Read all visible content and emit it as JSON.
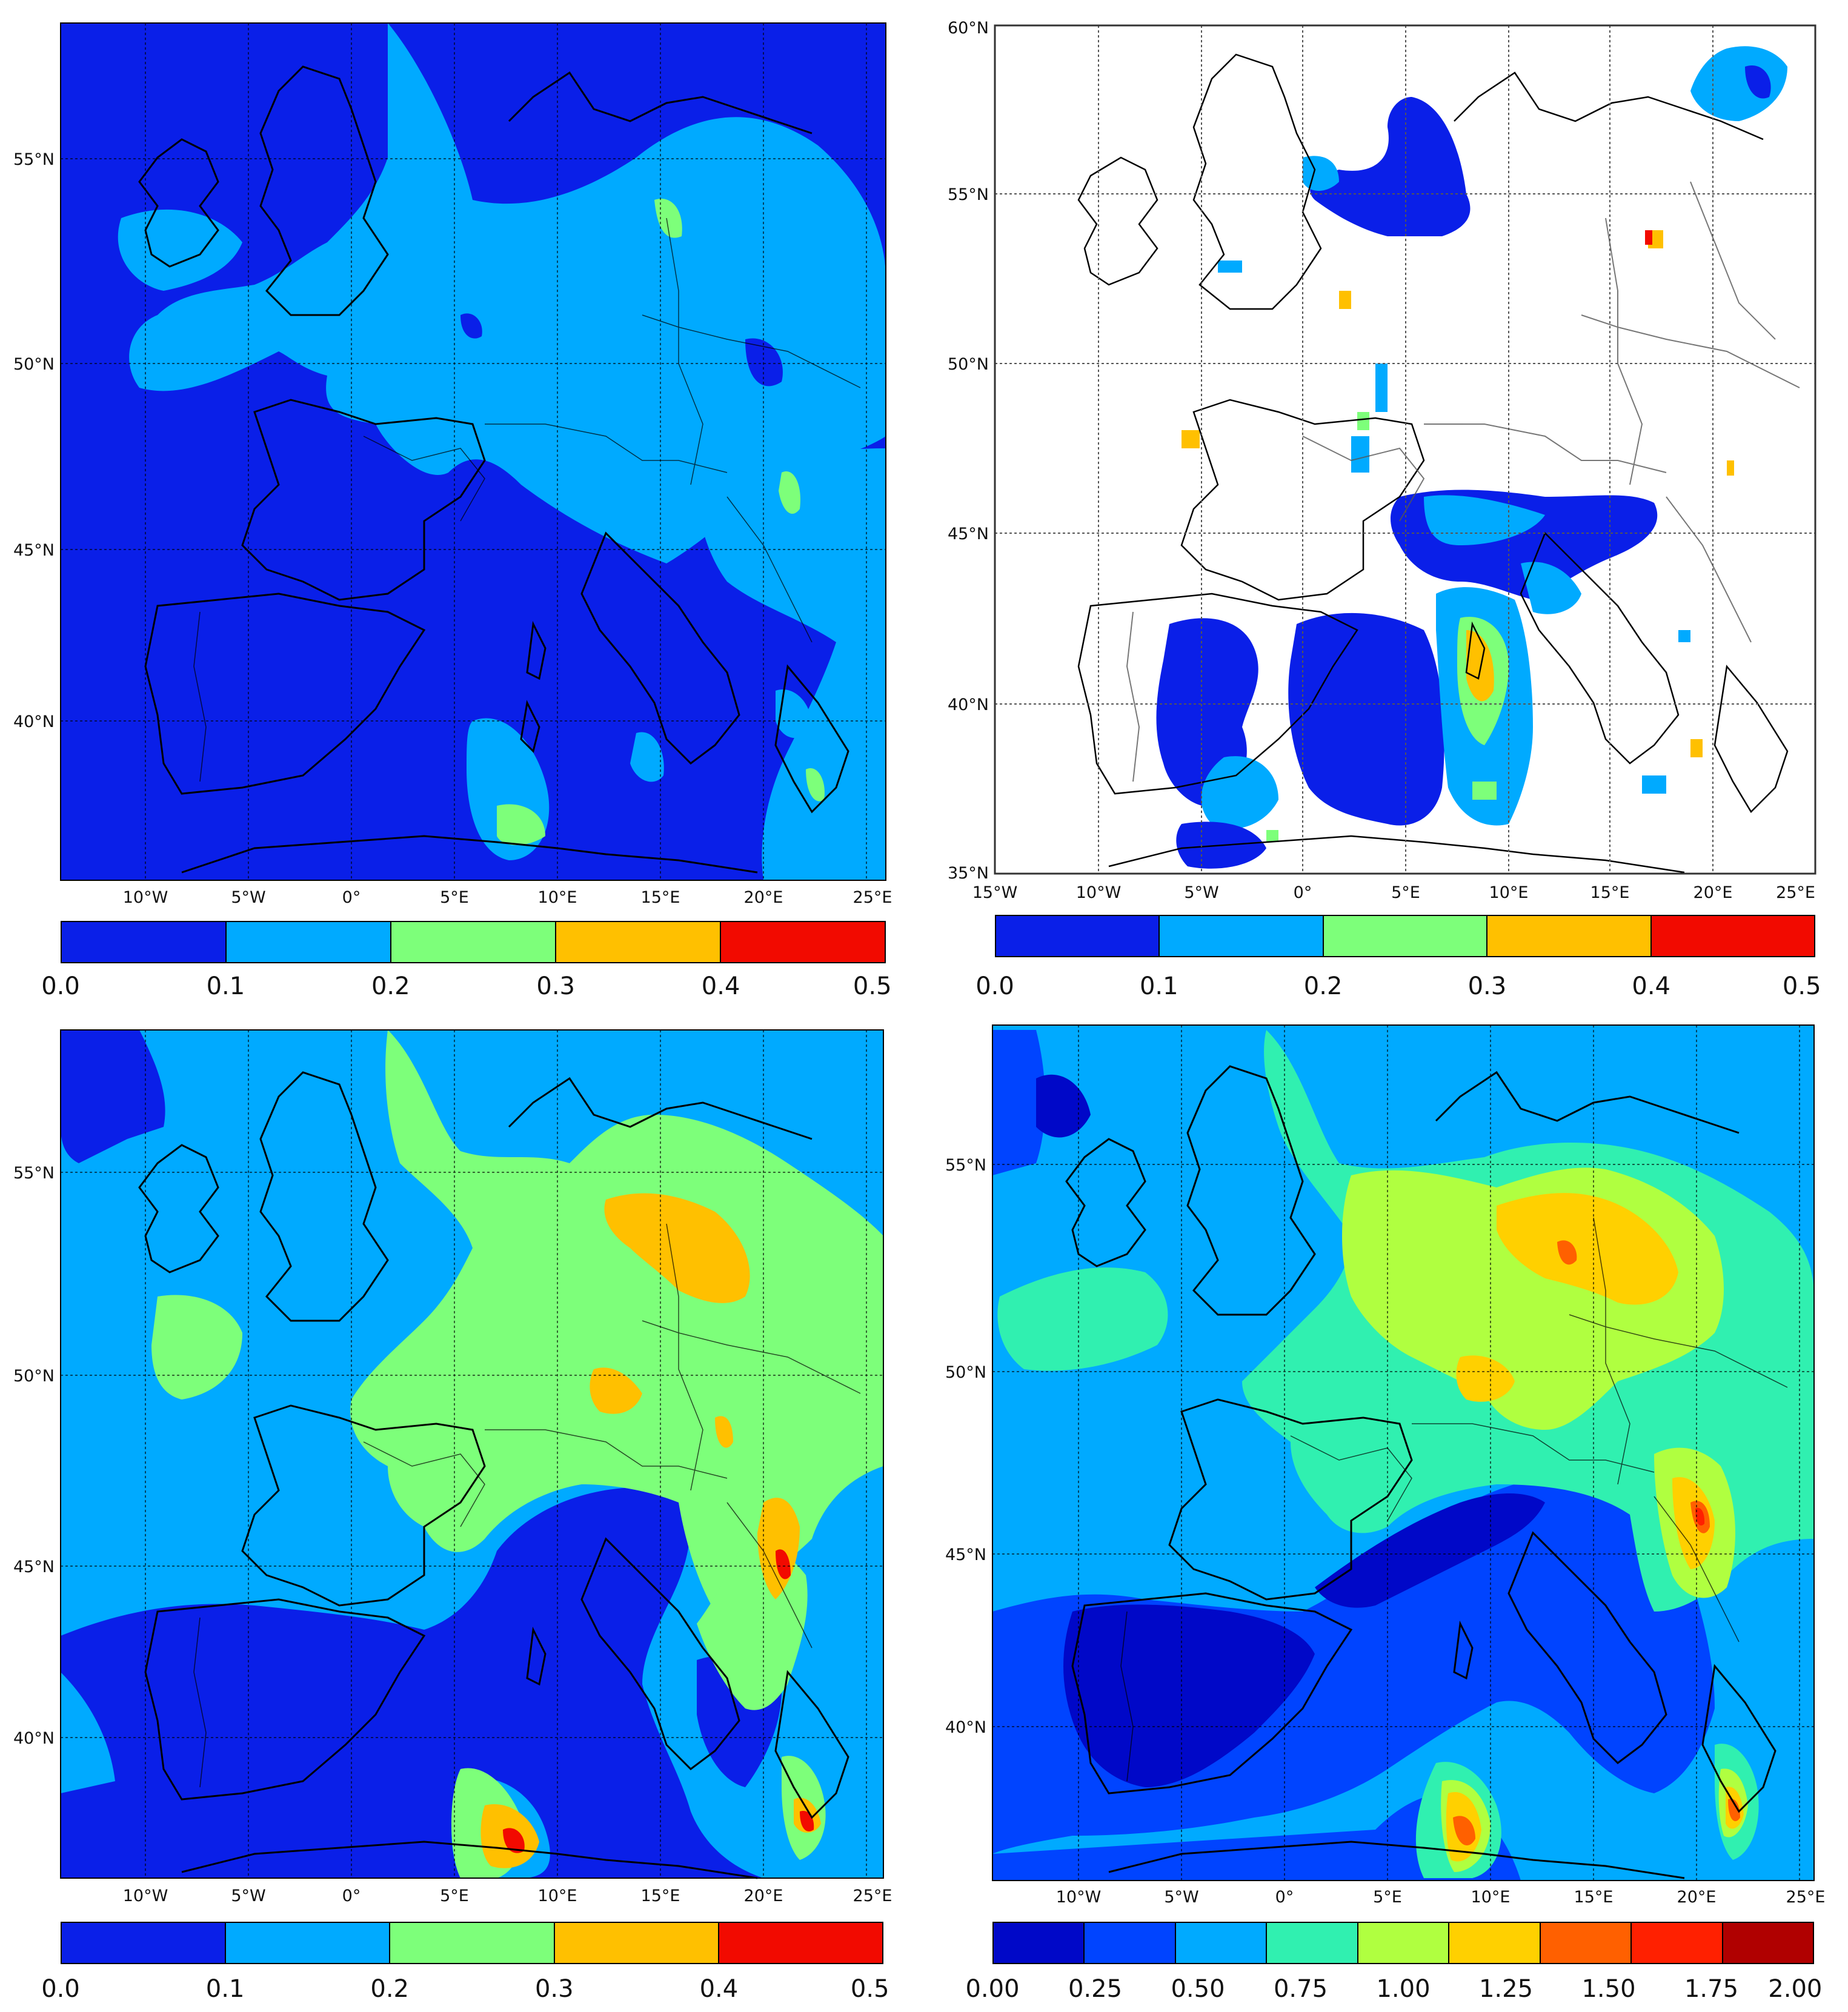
{
  "panels": [
    {
      "id": "top-left",
      "lat_labels": [
        "55°N",
        "50°N",
        "45°N",
        "40°N"
      ],
      "lon_labels": [
        "10°W",
        "5°W",
        "0°",
        "5°E",
        "10°E",
        "15°E",
        "20°E",
        "25°E"
      ],
      "colorbar": {
        "colors": [
          "#0a1fe8",
          "#00aaff",
          "#7dff7a",
          "#ffc000",
          "#f20a00"
        ],
        "labels": [
          "0.0",
          "0.1",
          "0.2",
          "0.3",
          "0.4",
          "0.5"
        ]
      }
    },
    {
      "id": "top-right",
      "lat_labels": [
        "60°N",
        "55°N",
        "50°N",
        "45°N",
        "40°N",
        "35°N"
      ],
      "lon_labels": [
        "15°W",
        "10°W",
        "5°W",
        "0°",
        "5°E",
        "10°E",
        "15°E",
        "20°E",
        "25°E"
      ],
      "colorbar": {
        "colors": [
          "#0a1fe8",
          "#00aaff",
          "#7dff7a",
          "#ffc000",
          "#f20a00"
        ],
        "labels": [
          "0.0",
          "0.1",
          "0.2",
          "0.3",
          "0.4",
          "0.5"
        ]
      }
    },
    {
      "id": "bottom-left",
      "lat_labels": [
        "55°N",
        "50°N",
        "45°N",
        "40°N"
      ],
      "lon_labels": [
        "10°W",
        "5°W",
        "0°",
        "5°E",
        "10°E",
        "15°E",
        "20°E",
        "25°E"
      ],
      "colorbar": {
        "colors": [
          "#0a1fe8",
          "#00aaff",
          "#7dff7a",
          "#ffc000",
          "#f20a00"
        ],
        "labels": [
          "0.0",
          "0.1",
          "0.2",
          "0.3",
          "0.4",
          "0.5"
        ]
      }
    },
    {
      "id": "bottom-right",
      "lat_labels": [
        "55°N",
        "50°N",
        "45°N",
        "40°N"
      ],
      "lon_labels": [
        "10°W",
        "5°W",
        "0°",
        "5°E",
        "10°E",
        "15°E",
        "20°E",
        "25°E"
      ],
      "colorbar": {
        "colors": [
          "#0008c8",
          "#0044ff",
          "#00aaff",
          "#30f0b0",
          "#b0ff40",
          "#ffd000",
          "#ff6000",
          "#ff2000",
          "#b00000"
        ],
        "labels": [
          "0.00",
          "0.25",
          "0.50",
          "0.75",
          "1.00",
          "1.25",
          "1.50",
          "1.75",
          "2.00"
        ]
      }
    }
  ]
}
